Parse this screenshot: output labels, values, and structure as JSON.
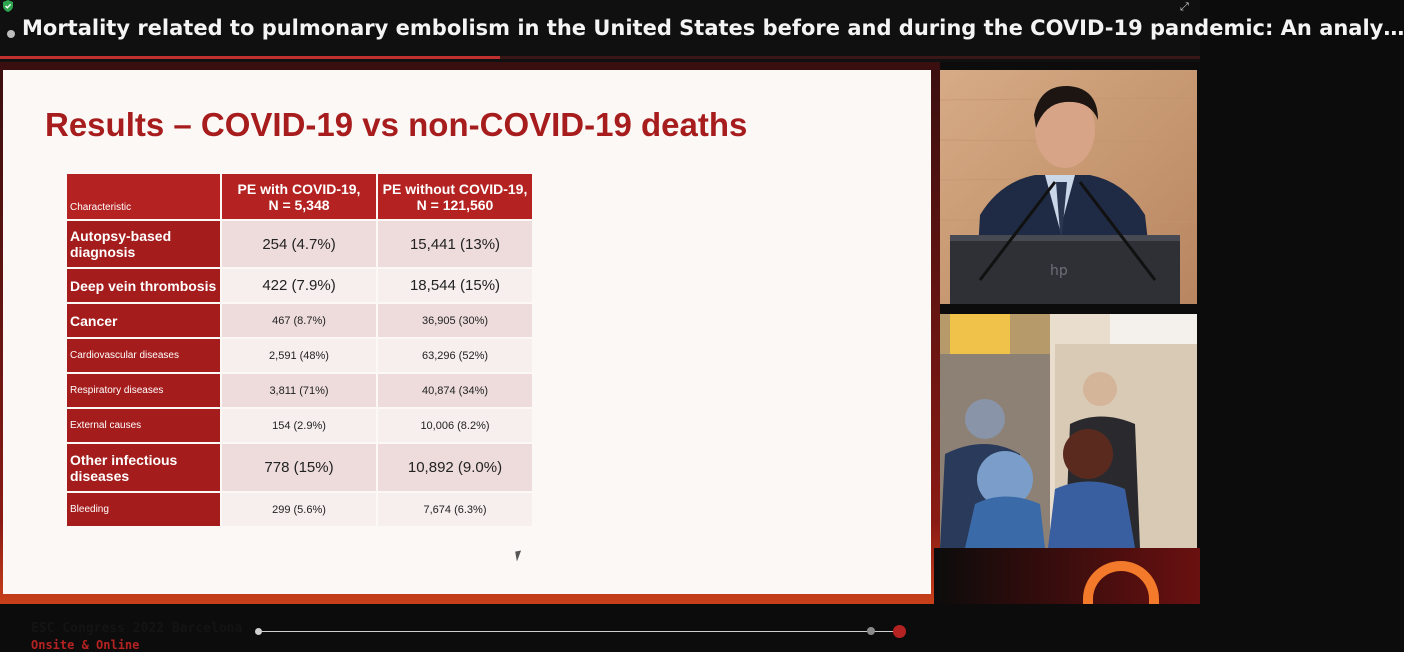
{
  "window": {
    "title": "Mortality related to pulmonary embolism in the United States before and during the COVID-19 pandemic: An analy…",
    "expand_icon": "expand-icon",
    "security_icon": "shield-check-icon"
  },
  "slide": {
    "title": "Results – COVID-19 vs non-COVID-19 deaths",
    "table": {
      "headers": [
        "Characteristic",
        "PE with COVID-19,\nN = 5,348",
        "PE without COVID-19,\nN = 121,560"
      ],
      "rows": [
        {
          "label": "Autopsy-based diagnosis",
          "with": "254 (4.7%)",
          "without": "15,441 (13%)"
        },
        {
          "label": "Deep vein thrombosis",
          "with": "422 (7.9%)",
          "without": "18,544 (15%)"
        },
        {
          "label": "Cancer",
          "with": "467 (8.7%)",
          "without": "36,905 (30%)"
        },
        {
          "label": "Cardiovascular diseases",
          "with": "2,591 (48%)",
          "without": "63,296 (52%)"
        },
        {
          "label": "Respiratory diseases",
          "with": "3,811 (71%)",
          "without": "40,874 (34%)"
        },
        {
          "label": "External causes",
          "with": "154 (2.9%)",
          "without": "10,006 (8.2%)"
        },
        {
          "label": "Other infectious diseases",
          "with": "778 (15%)",
          "without": "10,892 (9.0%)"
        },
        {
          "label": "Bleeding",
          "with": "299 (5.6%)",
          "without": "7,674 (6.3%)"
        }
      ]
    },
    "footer": {
      "congress": "ESC Congress 2022 Barcelona",
      "mode": "Onsite & Online"
    }
  },
  "colors": {
    "accent_red": "#b52222",
    "title_red": "#a71d1d",
    "orange_logo": "#f27a2a"
  },
  "video_panels": [
    "speaker-camera",
    "audience-camera"
  ]
}
